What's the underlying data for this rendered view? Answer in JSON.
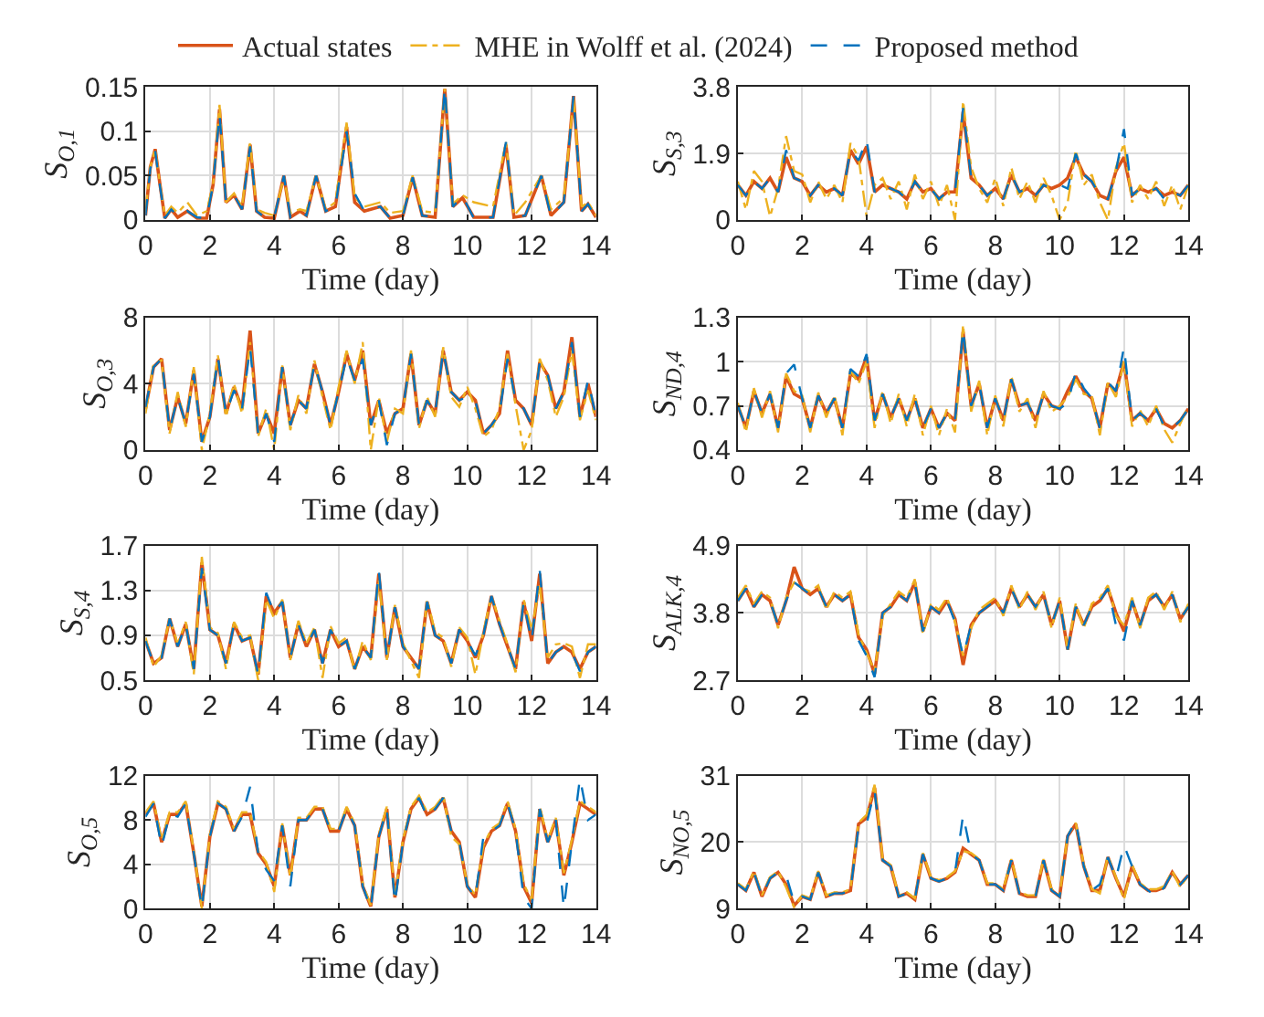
{
  "chart_data": [
    {
      "type": "line",
      "ylabel": "S$_{O,1}$",
      "xlabel": "Time (day)",
      "legend": "top",
      "grid": true,
      "xlim": [
        0,
        14
      ],
      "xticks": [
        0,
        2,
        4,
        6,
        8,
        10,
        12,
        14
      ],
      "ylim": [
        0,
        0.15
      ],
      "yticks": [
        0,
        0.05,
        0.1,
        0.15
      ],
      "x": [
        0,
        0.15,
        0.3,
        0.45,
        0.6,
        0.8,
        1.0,
        1.3,
        1.6,
        1.9,
        2.1,
        2.3,
        2.5,
        2.75,
        3.0,
        3.25,
        3.45,
        3.7,
        4.0,
        4.3,
        4.5,
        4.8,
        5.0,
        5.3,
        5.6,
        5.9,
        6.25,
        6.5,
        6.8,
        7.3,
        7.6,
        8.0,
        8.3,
        8.6,
        9.0,
        9.3,
        9.55,
        9.85,
        10.2,
        10.8,
        11.2,
        11.45,
        11.8,
        12.3,
        12.6,
        13.0,
        13.3,
        13.55,
        13.75,
        14
      ],
      "series": [
        {
          "name": "Actual states",
          "color": "#d95319",
          "line_style": "solid",
          "values": [
            0.005,
            0.06,
            0.08,
            0.04,
            0.002,
            0.012,
            0.003,
            0.01,
            0.002,
            0.002,
            0.04,
            0.125,
            0.02,
            0.028,
            0.012,
            0.085,
            0.01,
            0.003,
            0.002,
            0.05,
            0.003,
            0.01,
            0.005,
            0.05,
            0.01,
            0.015,
            0.105,
            0.02,
            0.01,
            0.015,
            0.002,
            0.005,
            0.048,
            0.005,
            0.003,
            0.148,
            0.015,
            0.025,
            0.003,
            0.003,
            0.085,
            0.003,
            0.005,
            0.05,
            0.005,
            0.02,
            0.14,
            0.01,
            0.018,
            0.003
          ]
        },
        {
          "name": "MHE in Wolff et al. (2024)",
          "color": "#edb120",
          "line_style": "dotted",
          "values": [
            0.01,
            0.06,
            0.08,
            0.04,
            0.005,
            0.015,
            0.008,
            0.02,
            0.005,
            0.01,
            0.04,
            0.13,
            0.02,
            0.03,
            0.015,
            0.088,
            0.012,
            0.008,
            0.005,
            0.048,
            0.008,
            0.012,
            0.01,
            0.05,
            0.012,
            0.02,
            0.11,
            0.025,
            0.015,
            0.02,
            0.008,
            0.01,
            0.05,
            0.01,
            0.008,
            0.148,
            0.018,
            0.028,
            0.02,
            0.015,
            0.088,
            0.005,
            0.02,
            0.05,
            0.012,
            0.025,
            0.138,
            0.015,
            0.02,
            0.005
          ]
        },
        {
          "name": "Proposed method",
          "color": "#0072bd",
          "line_style": "dashed",
          "values": [
            0.005,
            0.058,
            0.078,
            0.038,
            0.002,
            0.012,
            0.004,
            0.01,
            0.003,
            0.002,
            0.04,
            0.12,
            0.02,
            0.028,
            0.012,
            0.083,
            0.01,
            0.003,
            0.003,
            0.05,
            0.003,
            0.01,
            0.005,
            0.05,
            0.01,
            0.015,
            0.1,
            0.03,
            0.01,
            0.015,
            0.002,
            0.005,
            0.048,
            0.005,
            0.003,
            0.15,
            0.015,
            0.027,
            0.002,
            0.003,
            0.088,
            0.003,
            0.005,
            0.05,
            0.004,
            0.02,
            0.14,
            0.01,
            0.018,
            0.002
          ]
        }
      ]
    },
    {
      "type": "line",
      "ylabel": "S$_{S,3}$",
      "xlabel": "Time (day)",
      "grid": true,
      "xlim": [
        0,
        14
      ],
      "xticks": [
        0,
        2,
        4,
        6,
        8,
        10,
        12,
        14
      ],
      "ylim": [
        0,
        3.8
      ],
      "yticks": [
        0,
        1.9,
        3.8
      ],
      "x": [
        0,
        0.25,
        0.5,
        0.75,
        1,
        1.25,
        1.5,
        1.75,
        2,
        2.25,
        2.5,
        2.75,
        3,
        3.25,
        3.5,
        3.75,
        4,
        4.25,
        4.5,
        4.75,
        5,
        5.25,
        5.5,
        5.75,
        6,
        6.25,
        6.5,
        6.75,
        7,
        7.25,
        7.5,
        7.75,
        8,
        8.25,
        8.5,
        8.75,
        9,
        9.25,
        9.5,
        9.75,
        10,
        10.25,
        10.5,
        10.75,
        11,
        11.25,
        11.5,
        11.75,
        12,
        12.25,
        12.5,
        12.75,
        13,
        13.25,
        13.5,
        13.75,
        14
      ],
      "series": [
        {
          "color": "#d95319",
          "line_style": "solid",
          "values": [
            1.0,
            0.7,
            1.1,
            0.9,
            1.2,
            0.8,
            1.8,
            1.2,
            1.1,
            0.7,
            1.0,
            0.8,
            0.9,
            0.7,
            2.0,
            1.6,
            2.1,
            0.8,
            1.0,
            0.9,
            0.8,
            0.6,
            1.1,
            0.8,
            0.9,
            0.6,
            0.8,
            0.8,
            3.1,
            1.2,
            1.0,
            0.7,
            0.9,
            0.6,
            1.3,
            0.8,
            0.9,
            0.7,
            1.0,
            0.9,
            1.0,
            1.2,
            1.8,
            1.3,
            1.1,
            0.7,
            0.6,
            1.4,
            1.8,
            0.7,
            0.9,
            0.8,
            0.9,
            0.7,
            0.8,
            0.7,
            1.0
          ]
        },
        {
          "color": "#edb120",
          "line_style": "dotted",
          "values": [
            1.1,
            0.3,
            1.4,
            1.1,
            0.1,
            0.9,
            2.4,
            1.4,
            1.3,
            0.5,
            1.1,
            0.6,
            1.0,
            0.5,
            2.2,
            1.8,
            0.1,
            1.0,
            1.2,
            0.6,
            1.1,
            0.3,
            1.3,
            0.6,
            1.1,
            0.4,
            1.0,
            0.0,
            3.4,
            1.5,
            0.9,
            0.5,
            1.2,
            0.4,
            1.5,
            0.6,
            1.1,
            0.5,
            1.2,
            0.7,
            0.0,
            0.5,
            2.0,
            1.0,
            1.3,
            0.5,
            0.0,
            1.5,
            2.2,
            0.5,
            1.0,
            0.6,
            1.1,
            0.4,
            1.0,
            0.3,
            1.0
          ]
        },
        {
          "color": "#0072bd",
          "line_style": "dashed",
          "values": [
            1.0,
            0.7,
            1.1,
            0.9,
            1.2,
            0.8,
            2.0,
            1.2,
            1.1,
            0.7,
            1.0,
            0.8,
            0.9,
            0.7,
            2.0,
            1.7,
            2.3,
            0.8,
            1.0,
            0.9,
            0.8,
            0.6,
            1.1,
            0.8,
            0.9,
            0.6,
            0.8,
            0.8,
            3.2,
            1.2,
            1.0,
            0.7,
            0.9,
            0.6,
            1.3,
            0.8,
            0.9,
            0.7,
            1.0,
            0.9,
            1.0,
            0.9,
            1.9,
            1.3,
            1.1,
            0.7,
            0.6,
            1.4,
            2.6,
            0.7,
            0.9,
            0.8,
            0.9,
            0.6,
            0.8,
            0.7,
            1.0
          ]
        }
      ]
    },
    {
      "type": "line",
      "ylabel": "S$_{O,3}$",
      "xlabel": "Time (day)",
      "grid": true,
      "xlim": [
        0,
        14
      ],
      "xticks": [
        0,
        2,
        4,
        6,
        8,
        10,
        12,
        14
      ],
      "ylim": [
        0,
        8
      ],
      "yticks": [
        0,
        4,
        8
      ],
      "x": [
        0,
        0.25,
        0.5,
        0.75,
        1,
        1.25,
        1.5,
        1.75,
        2,
        2.25,
        2.5,
        2.75,
        3,
        3.25,
        3.5,
        3.75,
        4,
        4.25,
        4.5,
        4.75,
        5,
        5.25,
        5.5,
        5.75,
        6,
        6.25,
        6.5,
        6.75,
        7,
        7.25,
        7.5,
        7.75,
        8,
        8.25,
        8.5,
        8.75,
        9,
        9.25,
        9.5,
        9.75,
        10,
        10.25,
        10.5,
        10.75,
        11,
        11.25,
        11.5,
        11.75,
        12,
        12.25,
        12.5,
        12.75,
        13,
        13.25,
        13.5,
        13.75,
        14
      ],
      "series": [
        {
          "color": "#d95319",
          "line_style": "solid",
          "values": [
            2.5,
            5.0,
            5.5,
            1.2,
            3.2,
            1.6,
            4.8,
            0.5,
            2.0,
            5.5,
            2.2,
            3.8,
            2.5,
            7.2,
            1.0,
            2.2,
            1.0,
            5.0,
            1.5,
            3.0,
            2.5,
            5.2,
            3.5,
            1.5,
            3.5,
            5.8,
            4.2,
            6.0,
            1.5,
            3.0,
            1.0,
            2.2,
            2.5,
            5.8,
            1.5,
            3.0,
            2.2,
            6.0,
            3.5,
            3.0,
            3.5,
            3.0,
            1.0,
            1.5,
            2.2,
            6.0,
            3.0,
            2.5,
            1.5,
            5.3,
            4.5,
            2.5,
            3.5,
            6.8,
            2.0,
            4.0,
            2.0
          ]
        },
        {
          "color": "#edb120",
          "line_style": "dotted",
          "values": [
            2.2,
            5.2,
            5.4,
            1.0,
            3.5,
            1.4,
            5.0,
            0.0,
            2.2,
            5.7,
            2.0,
            4.0,
            2.2,
            6.5,
            0.8,
            2.5,
            0.0,
            5.1,
            1.2,
            3.3,
            2.2,
            5.4,
            3.2,
            1.2,
            3.8,
            6.0,
            4.0,
            6.5,
            0.0,
            3.2,
            0.5,
            2.5,
            2.2,
            6.0,
            1.3,
            3.2,
            2.0,
            6.2,
            3.2,
            2.6,
            3.8,
            2.5,
            0.8,
            1.2,
            2.5,
            5.8,
            2.7,
            0.0,
            1.2,
            5.5,
            4.2,
            2.0,
            3.2,
            6.0,
            1.8,
            3.6,
            1.8
          ]
        },
        {
          "color": "#0072bd",
          "line_style": "dashed",
          "values": [
            2.6,
            5.0,
            5.5,
            1.2,
            3.2,
            1.6,
            4.6,
            0.5,
            2.0,
            5.6,
            2.2,
            3.6,
            2.5,
            6.2,
            1.0,
            2.2,
            0.5,
            5.0,
            1.5,
            3.0,
            2.5,
            5.2,
            3.5,
            1.5,
            3.5,
            5.6,
            4.2,
            5.5,
            1.5,
            3.0,
            0.3,
            2.2,
            2.5,
            5.8,
            1.5,
            3.0,
            2.2,
            6.0,
            3.5,
            3.0,
            3.2,
            3.0,
            1.0,
            1.5,
            2.2,
            5.5,
            3.0,
            2.5,
            1.5,
            5.3,
            4.5,
            2.5,
            3.5,
            6.5,
            2.0,
            4.2,
            2.0
          ]
        }
      ]
    },
    {
      "type": "line",
      "ylabel": "S$_{ND,4}$",
      "xlabel": "Time (day)",
      "grid": true,
      "xlim": [
        0,
        14
      ],
      "xticks": [
        0,
        2,
        4,
        6,
        8,
        10,
        12,
        14
      ],
      "ylim": [
        0.4,
        1.3
      ],
      "yticks": [
        0.4,
        0.7,
        1,
        1.3
      ],
      "x": [
        0,
        0.25,
        0.5,
        0.75,
        1,
        1.25,
        1.5,
        1.75,
        2,
        2.25,
        2.5,
        2.75,
        3,
        3.25,
        3.5,
        3.75,
        4,
        4.25,
        4.5,
        4.75,
        5,
        5.25,
        5.5,
        5.75,
        6,
        6.25,
        6.5,
        6.75,
        7,
        7.25,
        7.5,
        7.75,
        8,
        8.25,
        8.5,
        8.75,
        9,
        9.25,
        9.5,
        9.75,
        10,
        10.25,
        10.5,
        10.75,
        11,
        11.25,
        11.5,
        11.75,
        12,
        12.25,
        12.5,
        12.75,
        13,
        13.25,
        13.5,
        13.75,
        14
      ],
      "series": [
        {
          "color": "#d95319",
          "line_style": "solid",
          "values": [
            0.7,
            0.55,
            0.8,
            0.65,
            0.78,
            0.55,
            0.9,
            0.78,
            0.75,
            0.55,
            0.77,
            0.65,
            0.75,
            0.55,
            0.92,
            0.88,
            1.03,
            0.6,
            0.78,
            0.62,
            0.75,
            0.6,
            0.75,
            0.55,
            0.68,
            0.55,
            0.65,
            0.6,
            1.2,
            0.7,
            0.85,
            0.55,
            0.75,
            0.6,
            0.88,
            0.7,
            0.72,
            0.6,
            0.78,
            0.7,
            0.68,
            0.8,
            0.9,
            0.8,
            0.75,
            0.55,
            0.85,
            0.8,
            1.0,
            0.6,
            0.65,
            0.6,
            0.68,
            0.58,
            0.55,
            0.6,
            0.68
          ]
        },
        {
          "color": "#edb120",
          "line_style": "dotted",
          "values": [
            0.72,
            0.52,
            0.82,
            0.62,
            0.8,
            0.52,
            0.92,
            0.8,
            0.77,
            0.52,
            0.79,
            0.62,
            0.77,
            0.5,
            0.94,
            0.85,
            1.0,
            0.55,
            0.8,
            0.58,
            0.78,
            0.56,
            0.78,
            0.5,
            0.7,
            0.5,
            0.68,
            0.52,
            1.25,
            0.66,
            0.87,
            0.5,
            0.77,
            0.56,
            0.9,
            0.66,
            0.75,
            0.55,
            0.8,
            0.66,
            0.7,
            0.76,
            0.88,
            0.78,
            0.77,
            0.5,
            0.86,
            0.76,
            1.0,
            0.56,
            0.67,
            0.56,
            0.7,
            0.54,
            0.45,
            0.58,
            0.7
          ]
        },
        {
          "color": "#0072bd",
          "line_style": "dashed",
          "values": [
            0.7,
            0.55,
            0.8,
            0.65,
            0.78,
            0.55,
            0.92,
            0.98,
            0.75,
            0.55,
            0.77,
            0.65,
            0.75,
            0.55,
            0.95,
            0.9,
            1.05,
            0.6,
            0.78,
            0.62,
            0.75,
            0.6,
            0.75,
            0.55,
            0.68,
            0.55,
            0.65,
            0.6,
            1.22,
            0.7,
            0.85,
            0.55,
            0.75,
            0.6,
            0.88,
            0.7,
            0.72,
            0.6,
            0.78,
            0.7,
            0.68,
            0.72,
            0.93,
            0.82,
            0.75,
            0.55,
            0.86,
            0.8,
            1.1,
            0.6,
            0.65,
            0.6,
            0.68,
            0.56,
            0.55,
            0.6,
            0.68
          ]
        }
      ]
    },
    {
      "type": "line",
      "ylabel": "S$_{S,4}$",
      "xlabel": "Time (day)",
      "grid": true,
      "xlim": [
        0,
        14
      ],
      "xticks": [
        0,
        2,
        4,
        6,
        8,
        10,
        12,
        14
      ],
      "ylim": [
        0.5,
        1.7
      ],
      "yticks": [
        0.5,
        0.9,
        1.3,
        1.7
      ],
      "x": [
        0,
        0.25,
        0.5,
        0.75,
        1,
        1.25,
        1.5,
        1.75,
        2,
        2.25,
        2.5,
        2.75,
        3,
        3.25,
        3.5,
        3.75,
        4,
        4.25,
        4.5,
        4.75,
        5,
        5.25,
        5.5,
        5.75,
        6,
        6.25,
        6.5,
        6.75,
        7,
        7.25,
        7.5,
        7.75,
        8,
        8.25,
        8.5,
        8.75,
        9,
        9.25,
        9.5,
        9.75,
        10,
        10.25,
        10.5,
        10.75,
        11,
        11.25,
        11.5,
        11.75,
        12,
        12.25,
        12.5,
        12.75,
        13,
        13.25,
        13.5,
        13.75,
        14
      ],
      "series": [
        {
          "color": "#d95319",
          "line_style": "solid",
          "values": [
            0.85,
            0.65,
            0.7,
            1.05,
            0.8,
            1.0,
            0.6,
            1.55,
            0.95,
            0.9,
            0.65,
            1.0,
            0.85,
            0.88,
            0.55,
            1.25,
            1.1,
            1.2,
            0.7,
            1.0,
            0.8,
            0.95,
            0.65,
            0.95,
            0.8,
            0.85,
            0.6,
            0.8,
            0.7,
            1.45,
            0.7,
            1.15,
            0.8,
            0.7,
            0.6,
            1.2,
            0.9,
            0.85,
            0.65,
            0.95,
            0.85,
            0.7,
            0.9,
            1.25,
            1.0,
            0.8,
            0.6,
            1.2,
            0.85,
            1.45,
            0.65,
            0.75,
            0.8,
            0.75,
            0.6,
            0.75,
            0.8
          ]
        },
        {
          "color": "#edb120",
          "line_style": "dotted",
          "values": [
            0.88,
            0.62,
            0.72,
            1.05,
            0.82,
            1.02,
            0.55,
            1.6,
            0.97,
            0.92,
            0.6,
            1.02,
            0.88,
            0.9,
            0.5,
            1.22,
            1.05,
            1.22,
            0.68,
            1.03,
            0.83,
            0.97,
            0.52,
            0.98,
            0.83,
            0.88,
            0.58,
            0.85,
            0.68,
            1.4,
            0.68,
            1.17,
            0.83,
            0.67,
            0.52,
            1.22,
            0.93,
            0.88,
            0.62,
            0.97,
            0.88,
            0.55,
            0.93,
            1.25,
            1.03,
            0.82,
            0.57,
            1.22,
            0.95,
            1.35,
            0.7,
            0.82,
            0.83,
            0.8,
            0.52,
            0.82,
            0.82
          ]
        },
        {
          "color": "#0072bd",
          "line_style": "dashed",
          "values": [
            0.85,
            0.65,
            0.7,
            1.05,
            0.8,
            1.0,
            0.6,
            1.5,
            0.95,
            0.9,
            0.65,
            1.0,
            0.85,
            0.88,
            0.55,
            1.28,
            1.1,
            1.2,
            0.7,
            1.0,
            0.8,
            0.95,
            0.65,
            0.95,
            0.8,
            0.85,
            0.6,
            0.8,
            0.7,
            1.48,
            0.7,
            1.15,
            0.8,
            0.7,
            0.6,
            1.2,
            0.9,
            0.85,
            0.65,
            0.95,
            0.85,
            0.72,
            0.9,
            1.25,
            1.0,
            0.8,
            0.6,
            1.2,
            0.85,
            1.48,
            0.65,
            0.75,
            0.8,
            0.75,
            0.58,
            0.75,
            0.8
          ]
        }
      ]
    },
    {
      "type": "line",
      "ylabel": "S$_{ALK,4}$",
      "xlabel": "Time (day)",
      "grid": true,
      "xlim": [
        0,
        14
      ],
      "xticks": [
        0,
        2,
        4,
        6,
        8,
        10,
        12,
        14
      ],
      "ylim": [
        2.7,
        4.9
      ],
      "yticks": [
        2.7,
        3.8,
        4.9
      ],
      "x": [
        0,
        0.25,
        0.5,
        0.75,
        1,
        1.25,
        1.5,
        1.75,
        2,
        2.25,
        2.5,
        2.75,
        3,
        3.25,
        3.5,
        3.75,
        4,
        4.25,
        4.5,
        4.75,
        5,
        5.25,
        5.5,
        5.75,
        6,
        6.25,
        6.5,
        6.75,
        7,
        7.25,
        7.5,
        7.75,
        8,
        8.25,
        8.5,
        8.75,
        9,
        9.25,
        9.5,
        9.75,
        10,
        10.25,
        10.5,
        10.75,
        11,
        11.25,
        11.5,
        11.75,
        12,
        12.25,
        12.5,
        12.75,
        13,
        13.25,
        13.5,
        13.75,
        14
      ],
      "series": [
        {
          "color": "#d95319",
          "line_style": "solid",
          "values": [
            4.0,
            4.2,
            3.9,
            4.1,
            4.0,
            3.6,
            4.0,
            4.55,
            4.2,
            4.1,
            4.2,
            3.9,
            4.1,
            4.0,
            4.1,
            3.4,
            3.2,
            2.8,
            3.8,
            3.9,
            4.1,
            4.0,
            4.3,
            3.5,
            3.9,
            3.8,
            4.0,
            3.7,
            2.95,
            3.6,
            3.8,
            3.9,
            4.0,
            3.8,
            4.2,
            3.9,
            4.1,
            3.9,
            4.1,
            3.6,
            4.0,
            3.2,
            3.9,
            3.6,
            3.9,
            4.0,
            4.2,
            3.8,
            3.5,
            4.0,
            3.6,
            4.0,
            4.1,
            3.9,
            4.1,
            3.7,
            3.9
          ]
        },
        {
          "color": "#edb120",
          "line_style": "dotted",
          "values": [
            4.05,
            4.25,
            3.95,
            4.15,
            4.05,
            3.55,
            4.05,
            4.3,
            4.2,
            4.15,
            4.25,
            3.85,
            4.15,
            4.05,
            4.15,
            3.45,
            3.15,
            2.85,
            3.75,
            3.95,
            4.15,
            4.05,
            4.35,
            3.45,
            3.95,
            3.85,
            4.05,
            3.65,
            3.1,
            3.55,
            3.85,
            3.95,
            4.05,
            3.75,
            4.25,
            3.85,
            4.15,
            3.85,
            4.15,
            3.55,
            4.05,
            3.2,
            3.95,
            3.55,
            3.95,
            4.05,
            4.25,
            3.75,
            3.6,
            4.05,
            3.55,
            4.05,
            4.15,
            3.85,
            4.15,
            3.65,
            3.95
          ]
        },
        {
          "color": "#0072bd",
          "line_style": "dashed",
          "values": [
            4.0,
            4.2,
            3.9,
            4.1,
            4.0,
            3.6,
            4.0,
            4.3,
            4.2,
            4.1,
            4.2,
            3.9,
            4.1,
            4.0,
            4.1,
            3.35,
            3.1,
            2.75,
            3.8,
            3.9,
            4.1,
            4.0,
            4.3,
            3.5,
            3.9,
            3.8,
            4.0,
            3.65,
            3.1,
            3.6,
            3.8,
            3.9,
            4.0,
            3.8,
            4.2,
            3.9,
            4.1,
            3.9,
            4.1,
            3.6,
            4.0,
            3.2,
            3.9,
            3.6,
            3.9,
            4.0,
            4.2,
            3.6,
            3.35,
            4.0,
            3.6,
            4.0,
            4.1,
            3.9,
            4.1,
            3.7,
            3.9
          ]
        }
      ]
    },
    {
      "type": "line",
      "ylabel": "S$_{O,5}$",
      "xlabel": "Time (day)",
      "grid": true,
      "xlim": [
        0,
        14
      ],
      "xticks": [
        0,
        2,
        4,
        6,
        8,
        10,
        12,
        14
      ],
      "ylim": [
        0,
        12
      ],
      "yticks": [
        0,
        4,
        8,
        12
      ],
      "x": [
        0,
        0.25,
        0.5,
        0.75,
        1,
        1.25,
        1.5,
        1.75,
        2,
        2.25,
        2.5,
        2.75,
        3,
        3.25,
        3.5,
        3.75,
        4,
        4.25,
        4.5,
        4.75,
        5,
        5.25,
        5.5,
        5.75,
        6,
        6.25,
        6.5,
        6.75,
        7,
        7.25,
        7.5,
        7.75,
        8,
        8.25,
        8.5,
        8.75,
        9,
        9.25,
        9.5,
        9.75,
        10,
        10.25,
        10.5,
        10.75,
        11,
        11.25,
        11.5,
        11.75,
        12,
        12.25,
        12.5,
        12.75,
        13,
        13.25,
        13.5,
        13.75,
        14
      ],
      "series": [
        {
          "color": "#d95319",
          "line_style": "solid",
          "values": [
            8.5,
            9.5,
            6.0,
            8.5,
            8.5,
            9.5,
            5.0,
            0.2,
            6.5,
            9.5,
            9.0,
            7.0,
            8.5,
            8.5,
            5.0,
            4.0,
            2.0,
            7.5,
            3.0,
            8.0,
            8.0,
            9.0,
            9.0,
            7.0,
            7.0,
            9.0,
            7.5,
            2.0,
            0.2,
            6.5,
            9.0,
            1.0,
            6.0,
            9.0,
            10.0,
            8.5,
            9.0,
            10.0,
            7.0,
            6.0,
            2.0,
            1.0,
            5.5,
            7.0,
            7.5,
            9.5,
            7.0,
            2.0,
            0.5,
            9.0,
            6.0,
            8.0,
            3.0,
            6.0,
            9.5,
            9.0,
            8.5
          ]
        },
        {
          "color": "#edb120",
          "line_style": "dotted",
          "values": [
            8.7,
            9.7,
            6.2,
            8.7,
            8.7,
            9.7,
            5.2,
            0.0,
            6.7,
            9.7,
            9.2,
            7.2,
            8.7,
            8.7,
            5.2,
            4.2,
            1.5,
            7.7,
            2.8,
            8.2,
            8.2,
            9.2,
            9.2,
            7.2,
            7.2,
            9.2,
            7.7,
            2.2,
            0.3,
            6.7,
            9.2,
            1.2,
            6.2,
            9.2,
            10.2,
            8.7,
            9.2,
            10.2,
            6.5,
            5.8,
            2.2,
            1.2,
            5.7,
            7.2,
            7.7,
            9.7,
            7.2,
            2.2,
            0.8,
            9.2,
            6.2,
            8.2,
            3.2,
            6.2,
            9.7,
            9.2,
            8.7
          ]
        },
        {
          "color": "#0072bd",
          "line_style": "dashed",
          "values": [
            8.3,
            9.5,
            5.6,
            8.5,
            8.3,
            9.5,
            5.0,
            0.0,
            6.5,
            9.5,
            9.0,
            7.0,
            8.3,
            11.0,
            5.0,
            3.5,
            2.5,
            7.5,
            2.0,
            8.0,
            8.0,
            9.0,
            9.0,
            7.0,
            7.0,
            9.0,
            7.5,
            2.0,
            0.0,
            6.5,
            9.0,
            0.5,
            6.0,
            9.0,
            10.0,
            8.3,
            9.0,
            10.0,
            7.0,
            6.0,
            2.0,
            1.0,
            6.5,
            7.0,
            7.5,
            9.5,
            7.0,
            1.0,
            0.0,
            9.0,
            6.0,
            8.0,
            0.0,
            6.0,
            11.8,
            8.0,
            8.5
          ]
        }
      ]
    },
    {
      "type": "line",
      "ylabel": "S$_{NO,5}$",
      "xlabel": "Time (day)",
      "grid": true,
      "xlim": [
        0,
        14
      ],
      "xticks": [
        0,
        2,
        4,
        6,
        8,
        10,
        12,
        14
      ],
      "ylim": [
        9,
        31
      ],
      "yticks": [
        9,
        20,
        31
      ],
      "x": [
        0,
        0.25,
        0.5,
        0.75,
        1,
        1.25,
        1.5,
        1.75,
        2,
        2.25,
        2.5,
        2.75,
        3,
        3.25,
        3.5,
        3.75,
        4,
        4.25,
        4.5,
        4.75,
        5,
        5.25,
        5.5,
        5.75,
        6,
        6.25,
        6.5,
        6.75,
        7,
        7.25,
        7.5,
        7.75,
        8,
        8.25,
        8.5,
        8.75,
        9,
        9.25,
        9.5,
        9.75,
        10,
        10.25,
        10.5,
        10.75,
        11,
        11.25,
        11.5,
        11.75,
        12,
        12.25,
        12.5,
        12.75,
        13,
        13.25,
        13.5,
        13.75,
        14
      ],
      "series": [
        {
          "color": "#d95319",
          "line_style": "solid",
          "values": [
            13,
            12,
            15,
            11,
            14,
            15,
            13,
            9.5,
            11,
            10.5,
            15,
            11,
            11.5,
            11.5,
            12,
            23,
            24,
            29,
            17,
            16,
            11,
            11.5,
            10.5,
            18,
            14,
            13.5,
            14,
            15,
            19,
            18,
            17,
            13,
            13,
            12,
            17,
            11.5,
            11,
            11,
            17,
            12,
            11,
            21,
            23,
            16,
            12,
            12,
            17.5,
            14,
            11,
            16,
            13,
            12,
            12,
            12.5,
            15,
            13,
            14.5
          ]
        },
        {
          "color": "#edb120",
          "line_style": "dotted",
          "values": [
            13.2,
            12.2,
            15.2,
            11.2,
            14.2,
            15.2,
            12.5,
            9.2,
            11.2,
            10.7,
            15.2,
            11.2,
            11.7,
            11.7,
            12.2,
            23.2,
            24.5,
            29.5,
            17.2,
            16.2,
            11.2,
            11.7,
            10.7,
            18.2,
            14.2,
            13.7,
            14.2,
            15.2,
            18.5,
            18.2,
            17.2,
            13.2,
            13.2,
            12.2,
            17.2,
            11.7,
            11.2,
            11.2,
            17.2,
            12.2,
            11.2,
            21.2,
            23.2,
            16.2,
            12.2,
            11.5,
            17.7,
            14.2,
            10.5,
            16.2,
            13.2,
            12.2,
            12.2,
            12.7,
            15.2,
            12.5,
            14.7
          ]
        },
        {
          "color": "#0072bd",
          "line_style": "dashed",
          "values": [
            13,
            12,
            15,
            11,
            14,
            15,
            14.5,
            10,
            11,
            10.5,
            15,
            11,
            11.5,
            11.5,
            12,
            22.5,
            23,
            28.5,
            17,
            16,
            11,
            11.5,
            10.5,
            18,
            14,
            13.5,
            14,
            15,
            24.5,
            18,
            17,
            13,
            13,
            12,
            17,
            11.5,
            11,
            11,
            17,
            12,
            11,
            21,
            23.5,
            16,
            12,
            13,
            17.5,
            14,
            19.5,
            16,
            13,
            12,
            11,
            12.5,
            15,
            13,
            14.5
          ]
        }
      ]
    }
  ]
}
